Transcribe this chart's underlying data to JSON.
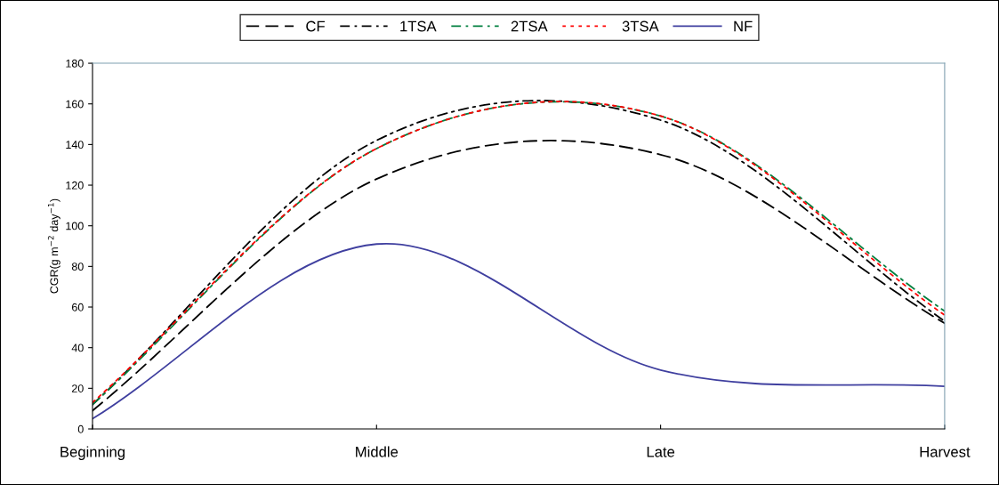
{
  "chart_data": {
    "type": "line",
    "ylabel": "CGR(g m$^{−2}$ day$^{−1}$)",
    "categories": [
      "Beginning",
      "Middle",
      "Late",
      "Harvest"
    ],
    "series": [
      {
        "name": "CF",
        "color": "#000000",
        "line_style": "dashed",
        "values": [
          9,
          123,
          135,
          52
        ]
      },
      {
        "name": "1TSA",
        "color": "#000000",
        "line_style": "dashdot",
        "values": [
          12,
          142,
          152,
          53
        ]
      },
      {
        "name": "2TSA",
        "color": "#007f3f",
        "line_style": "dashdot",
        "values": [
          12,
          138,
          154,
          58
        ]
      },
      {
        "name": "3TSA",
        "color": "#ff0000",
        "line_style": "dotted",
        "values": [
          13,
          138,
          154,
          56
        ]
      },
      {
        "name": "NF",
        "color": "#3f3f9f",
        "line_style": "solid",
        "values": [
          5,
          91,
          29,
          21
        ]
      }
    ],
    "ylim": [
      0,
      180
    ],
    "yticks": [
      0,
      20,
      40,
      60,
      80,
      100,
      120,
      140,
      160,
      180
    ],
    "grid": false,
    "legend": "top",
    "marker": "none"
  }
}
